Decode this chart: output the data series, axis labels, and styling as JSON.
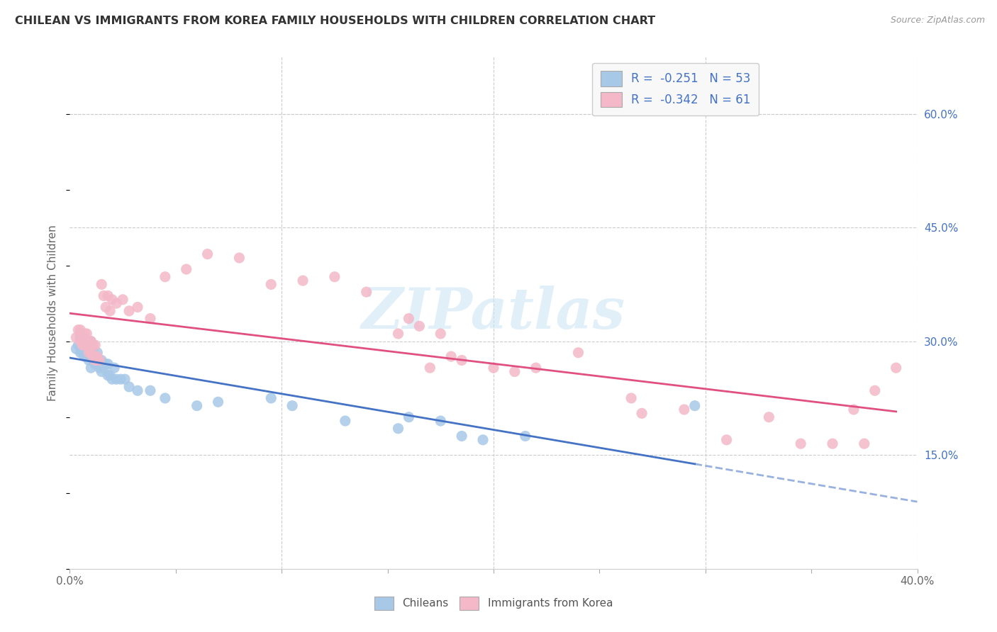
{
  "title": "CHILEAN VS IMMIGRANTS FROM KOREA FAMILY HOUSEHOLDS WITH CHILDREN CORRELATION CHART",
  "source": "Source: ZipAtlas.com",
  "ylabel": "Family Households with Children",
  "xlim": [
    0.0,
    0.4
  ],
  "ylim": [
    0.0,
    0.675
  ],
  "y_ticks_right": [
    0.15,
    0.3,
    0.45,
    0.6
  ],
  "y_tick_labels_right": [
    "15.0%",
    "30.0%",
    "45.0%",
    "60.0%"
  ],
  "watermark": "ZIPatlas",
  "color_blue": "#a8c8e8",
  "color_pink": "#f4b8c8",
  "color_text_blue": "#4472c4",
  "color_line_blue": "#4472c4",
  "color_line_pink": "#e05080",
  "color_grid": "#cccccc",
  "scatter_chilean_x": [
    0.003,
    0.004,
    0.005,
    0.005,
    0.005,
    0.006,
    0.006,
    0.006,
    0.007,
    0.007,
    0.008,
    0.008,
    0.009,
    0.009,
    0.01,
    0.01,
    0.01,
    0.011,
    0.011,
    0.012,
    0.012,
    0.013,
    0.013,
    0.014,
    0.014,
    0.015,
    0.015,
    0.016,
    0.017,
    0.018,
    0.018,
    0.019,
    0.02,
    0.021,
    0.022,
    0.024,
    0.026,
    0.028,
    0.032,
    0.038,
    0.045,
    0.06,
    0.07,
    0.095,
    0.105,
    0.13,
    0.155,
    0.16,
    0.175,
    0.185,
    0.195,
    0.215,
    0.295
  ],
  "scatter_chilean_y": [
    0.29,
    0.295,
    0.285,
    0.305,
    0.31,
    0.285,
    0.295,
    0.305,
    0.28,
    0.3,
    0.28,
    0.295,
    0.275,
    0.295,
    0.265,
    0.285,
    0.3,
    0.275,
    0.29,
    0.27,
    0.28,
    0.27,
    0.285,
    0.265,
    0.275,
    0.26,
    0.275,
    0.265,
    0.27,
    0.255,
    0.27,
    0.255,
    0.25,
    0.265,
    0.25,
    0.25,
    0.25,
    0.24,
    0.235,
    0.235,
    0.225,
    0.215,
    0.22,
    0.225,
    0.215,
    0.195,
    0.185,
    0.2,
    0.195,
    0.175,
    0.17,
    0.175,
    0.215
  ],
  "scatter_korea_x": [
    0.003,
    0.004,
    0.005,
    0.005,
    0.006,
    0.006,
    0.007,
    0.007,
    0.008,
    0.008,
    0.009,
    0.009,
    0.01,
    0.01,
    0.011,
    0.011,
    0.012,
    0.012,
    0.013,
    0.014,
    0.015,
    0.016,
    0.017,
    0.018,
    0.019,
    0.02,
    0.022,
    0.025,
    0.028,
    0.032,
    0.038,
    0.045,
    0.055,
    0.065,
    0.08,
    0.095,
    0.11,
    0.125,
    0.14,
    0.155,
    0.16,
    0.165,
    0.17,
    0.175,
    0.18,
    0.185,
    0.2,
    0.21,
    0.22,
    0.24,
    0.265,
    0.27,
    0.29,
    0.31,
    0.33,
    0.345,
    0.36,
    0.37,
    0.375,
    0.38,
    0.39
  ],
  "scatter_korea_y": [
    0.305,
    0.315,
    0.3,
    0.315,
    0.295,
    0.31,
    0.295,
    0.31,
    0.295,
    0.31,
    0.285,
    0.3,
    0.285,
    0.3,
    0.28,
    0.295,
    0.275,
    0.295,
    0.28,
    0.275,
    0.375,
    0.36,
    0.345,
    0.36,
    0.34,
    0.355,
    0.35,
    0.355,
    0.34,
    0.345,
    0.33,
    0.385,
    0.395,
    0.415,
    0.41,
    0.375,
    0.38,
    0.385,
    0.365,
    0.31,
    0.33,
    0.32,
    0.265,
    0.31,
    0.28,
    0.275,
    0.265,
    0.26,
    0.265,
    0.285,
    0.225,
    0.205,
    0.21,
    0.17,
    0.2,
    0.165,
    0.165,
    0.21,
    0.165,
    0.235,
    0.265
  ]
}
